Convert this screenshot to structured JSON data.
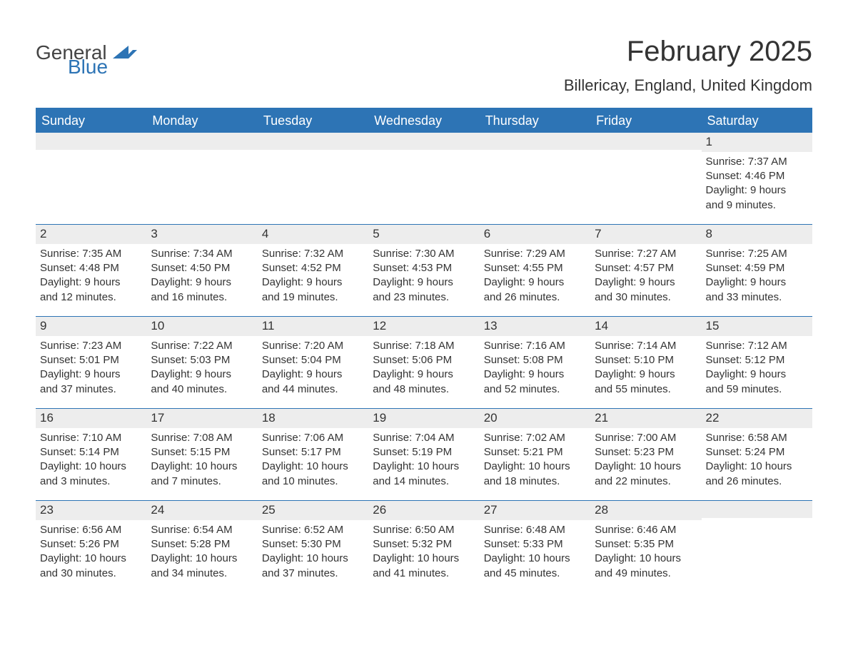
{
  "brand": {
    "word1": "General",
    "word2": "Blue",
    "icon_color": "#2d74b5"
  },
  "title": "February 2025",
  "location": "Billericay, England, United Kingdom",
  "colors": {
    "header_bg": "#2d74b5",
    "header_text": "#ffffff",
    "daynum_bg": "#ededed",
    "border": "#2d74b5",
    "body_text": "#333333",
    "background": "#ffffff"
  },
  "typography": {
    "title_fontsize": 40,
    "location_fontsize": 22,
    "header_fontsize": 18,
    "cell_fontsize": 15,
    "font_family": "Arial"
  },
  "day_names": [
    "Sunday",
    "Monday",
    "Tuesday",
    "Wednesday",
    "Thursday",
    "Friday",
    "Saturday"
  ],
  "weeks": [
    [
      null,
      null,
      null,
      null,
      null,
      null,
      {
        "day": "1",
        "sunrise": "Sunrise: 7:37 AM",
        "sunset": "Sunset: 4:46 PM",
        "daylight1": "Daylight: 9 hours",
        "daylight2": "and 9 minutes."
      }
    ],
    [
      {
        "day": "2",
        "sunrise": "Sunrise: 7:35 AM",
        "sunset": "Sunset: 4:48 PM",
        "daylight1": "Daylight: 9 hours",
        "daylight2": "and 12 minutes."
      },
      {
        "day": "3",
        "sunrise": "Sunrise: 7:34 AM",
        "sunset": "Sunset: 4:50 PM",
        "daylight1": "Daylight: 9 hours",
        "daylight2": "and 16 minutes."
      },
      {
        "day": "4",
        "sunrise": "Sunrise: 7:32 AM",
        "sunset": "Sunset: 4:52 PM",
        "daylight1": "Daylight: 9 hours",
        "daylight2": "and 19 minutes."
      },
      {
        "day": "5",
        "sunrise": "Sunrise: 7:30 AM",
        "sunset": "Sunset: 4:53 PM",
        "daylight1": "Daylight: 9 hours",
        "daylight2": "and 23 minutes."
      },
      {
        "day": "6",
        "sunrise": "Sunrise: 7:29 AM",
        "sunset": "Sunset: 4:55 PM",
        "daylight1": "Daylight: 9 hours",
        "daylight2": "and 26 minutes."
      },
      {
        "day": "7",
        "sunrise": "Sunrise: 7:27 AM",
        "sunset": "Sunset: 4:57 PM",
        "daylight1": "Daylight: 9 hours",
        "daylight2": "and 30 minutes."
      },
      {
        "day": "8",
        "sunrise": "Sunrise: 7:25 AM",
        "sunset": "Sunset: 4:59 PM",
        "daylight1": "Daylight: 9 hours",
        "daylight2": "and 33 minutes."
      }
    ],
    [
      {
        "day": "9",
        "sunrise": "Sunrise: 7:23 AM",
        "sunset": "Sunset: 5:01 PM",
        "daylight1": "Daylight: 9 hours",
        "daylight2": "and 37 minutes."
      },
      {
        "day": "10",
        "sunrise": "Sunrise: 7:22 AM",
        "sunset": "Sunset: 5:03 PM",
        "daylight1": "Daylight: 9 hours",
        "daylight2": "and 40 minutes."
      },
      {
        "day": "11",
        "sunrise": "Sunrise: 7:20 AM",
        "sunset": "Sunset: 5:04 PM",
        "daylight1": "Daylight: 9 hours",
        "daylight2": "and 44 minutes."
      },
      {
        "day": "12",
        "sunrise": "Sunrise: 7:18 AM",
        "sunset": "Sunset: 5:06 PM",
        "daylight1": "Daylight: 9 hours",
        "daylight2": "and 48 minutes."
      },
      {
        "day": "13",
        "sunrise": "Sunrise: 7:16 AM",
        "sunset": "Sunset: 5:08 PM",
        "daylight1": "Daylight: 9 hours",
        "daylight2": "and 52 minutes."
      },
      {
        "day": "14",
        "sunrise": "Sunrise: 7:14 AM",
        "sunset": "Sunset: 5:10 PM",
        "daylight1": "Daylight: 9 hours",
        "daylight2": "and 55 minutes."
      },
      {
        "day": "15",
        "sunrise": "Sunrise: 7:12 AM",
        "sunset": "Sunset: 5:12 PM",
        "daylight1": "Daylight: 9 hours",
        "daylight2": "and 59 minutes."
      }
    ],
    [
      {
        "day": "16",
        "sunrise": "Sunrise: 7:10 AM",
        "sunset": "Sunset: 5:14 PM",
        "daylight1": "Daylight: 10 hours",
        "daylight2": "and 3 minutes."
      },
      {
        "day": "17",
        "sunrise": "Sunrise: 7:08 AM",
        "sunset": "Sunset: 5:15 PM",
        "daylight1": "Daylight: 10 hours",
        "daylight2": "and 7 minutes."
      },
      {
        "day": "18",
        "sunrise": "Sunrise: 7:06 AM",
        "sunset": "Sunset: 5:17 PM",
        "daylight1": "Daylight: 10 hours",
        "daylight2": "and 10 minutes."
      },
      {
        "day": "19",
        "sunrise": "Sunrise: 7:04 AM",
        "sunset": "Sunset: 5:19 PM",
        "daylight1": "Daylight: 10 hours",
        "daylight2": "and 14 minutes."
      },
      {
        "day": "20",
        "sunrise": "Sunrise: 7:02 AM",
        "sunset": "Sunset: 5:21 PM",
        "daylight1": "Daylight: 10 hours",
        "daylight2": "and 18 minutes."
      },
      {
        "day": "21",
        "sunrise": "Sunrise: 7:00 AM",
        "sunset": "Sunset: 5:23 PM",
        "daylight1": "Daylight: 10 hours",
        "daylight2": "and 22 minutes."
      },
      {
        "day": "22",
        "sunrise": "Sunrise: 6:58 AM",
        "sunset": "Sunset: 5:24 PM",
        "daylight1": "Daylight: 10 hours",
        "daylight2": "and 26 minutes."
      }
    ],
    [
      {
        "day": "23",
        "sunrise": "Sunrise: 6:56 AM",
        "sunset": "Sunset: 5:26 PM",
        "daylight1": "Daylight: 10 hours",
        "daylight2": "and 30 minutes."
      },
      {
        "day": "24",
        "sunrise": "Sunrise: 6:54 AM",
        "sunset": "Sunset: 5:28 PM",
        "daylight1": "Daylight: 10 hours",
        "daylight2": "and 34 minutes."
      },
      {
        "day": "25",
        "sunrise": "Sunrise: 6:52 AM",
        "sunset": "Sunset: 5:30 PM",
        "daylight1": "Daylight: 10 hours",
        "daylight2": "and 37 minutes."
      },
      {
        "day": "26",
        "sunrise": "Sunrise: 6:50 AM",
        "sunset": "Sunset: 5:32 PM",
        "daylight1": "Daylight: 10 hours",
        "daylight2": "and 41 minutes."
      },
      {
        "day": "27",
        "sunrise": "Sunrise: 6:48 AM",
        "sunset": "Sunset: 5:33 PM",
        "daylight1": "Daylight: 10 hours",
        "daylight2": "and 45 minutes."
      },
      {
        "day": "28",
        "sunrise": "Sunrise: 6:46 AM",
        "sunset": "Sunset: 5:35 PM",
        "daylight1": "Daylight: 10 hours",
        "daylight2": "and 49 minutes."
      },
      null
    ]
  ]
}
